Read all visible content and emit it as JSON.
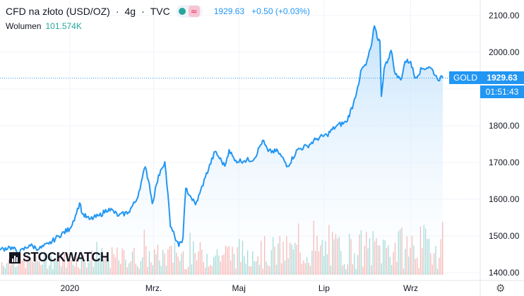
{
  "header": {
    "symbol": "CFD na złoto (USD/OZ)",
    "separator_1": "·",
    "interval": "4g",
    "separator_2": "·",
    "source": "TVC",
    "icon_1": "market-open-dot-icon",
    "icon_2": "wave-icon",
    "wave_glyph": "≈",
    "last_quote": "1929.63",
    "change": "+0.50 (+0.03%)"
  },
  "volume": {
    "label": "Wolumen",
    "value": "101.574K"
  },
  "logo_text": "STOCKWATCH",
  "badges": {
    "symbol": "GOLD",
    "price": "1929.63",
    "countdown": "01:51:43"
  },
  "colors": {
    "line": "#2196f3",
    "area_top": "#bbdefb",
    "vol_up": "#26a69a",
    "vol_down": "#ef5350",
    "axis_text": "#131722",
    "grid": "#f0f3fa"
  },
  "chart_data": {
    "type": "area",
    "y_axis_side": "right",
    "y_ticks": [
      1400,
      1500,
      1600,
      1700,
      1800,
      1900,
      2000,
      2100
    ],
    "y_tick_labels": [
      "1400.00",
      "1500.00",
      "1600.00",
      "1700.00",
      "1800.00",
      "1900.00",
      "2000.00",
      "2100.00"
    ],
    "ylim": [
      1385,
      2118
    ],
    "x_ticks": [
      {
        "label": "2020",
        "value": "2020-01-01"
      },
      {
        "label": "Mrz.",
        "value": "2020-03-01"
      },
      {
        "label": "Maj",
        "value": "2020-05-01"
      },
      {
        "label": "Lip",
        "value": "2020-07-01"
      },
      {
        "label": "Wrz",
        "value": "2020-09-01"
      }
    ],
    "xlim": [
      "2019-11-12",
      "2020-09-24"
    ],
    "last_price": 1929.63,
    "series": [
      {
        "values": [
          {
            "x": "2019-11-12",
            "y": 1462
          },
          {
            "x": "2019-11-19",
            "y": 1470
          },
          {
            "x": "2019-11-26",
            "y": 1455
          },
          {
            "x": "2019-12-03",
            "y": 1475
          },
          {
            "x": "2019-12-10",
            "y": 1465
          },
          {
            "x": "2019-12-17",
            "y": 1478
          },
          {
            "x": "2019-12-24",
            "y": 1500
          },
          {
            "x": "2020-01-01",
            "y": 1520
          },
          {
            "x": "2020-01-05",
            "y": 1555
          },
          {
            "x": "2020-01-08",
            "y": 1590
          },
          {
            "x": "2020-01-10",
            "y": 1560
          },
          {
            "x": "2020-01-15",
            "y": 1545
          },
          {
            "x": "2020-01-22",
            "y": 1555
          },
          {
            "x": "2020-01-29",
            "y": 1575
          },
          {
            "x": "2020-02-05",
            "y": 1555
          },
          {
            "x": "2020-02-12",
            "y": 1565
          },
          {
            "x": "2020-02-18",
            "y": 1600
          },
          {
            "x": "2020-02-21",
            "y": 1645
          },
          {
            "x": "2020-02-24",
            "y": 1688
          },
          {
            "x": "2020-02-27",
            "y": 1640
          },
          {
            "x": "2020-02-29",
            "y": 1588
          },
          {
            "x": "2020-03-03",
            "y": 1640
          },
          {
            "x": "2020-03-06",
            "y": 1680
          },
          {
            "x": "2020-03-09",
            "y": 1702
          },
          {
            "x": "2020-03-12",
            "y": 1580
          },
          {
            "x": "2020-03-13",
            "y": 1525
          },
          {
            "x": "2020-03-16",
            "y": 1500
          },
          {
            "x": "2020-03-19",
            "y": 1472
          },
          {
            "x": "2020-03-22",
            "y": 1495
          },
          {
            "x": "2020-03-24",
            "y": 1630
          },
          {
            "x": "2020-03-27",
            "y": 1610
          },
          {
            "x": "2020-03-31",
            "y": 1585
          },
          {
            "x": "2020-04-03",
            "y": 1615
          },
          {
            "x": "2020-04-07",
            "y": 1660
          },
          {
            "x": "2020-04-14",
            "y": 1730
          },
          {
            "x": "2020-04-21",
            "y": 1690
          },
          {
            "x": "2020-04-24",
            "y": 1735
          },
          {
            "x": "2020-04-28",
            "y": 1705
          },
          {
            "x": "2020-05-05",
            "y": 1705
          },
          {
            "x": "2020-05-12",
            "y": 1710
          },
          {
            "x": "2020-05-18",
            "y": 1760
          },
          {
            "x": "2020-05-22",
            "y": 1730
          },
          {
            "x": "2020-05-29",
            "y": 1730
          },
          {
            "x": "2020-06-05",
            "y": 1690
          },
          {
            "x": "2020-06-12",
            "y": 1735
          },
          {
            "x": "2020-06-19",
            "y": 1745
          },
          {
            "x": "2020-06-26",
            "y": 1765
          },
          {
            "x": "2020-07-03",
            "y": 1775
          },
          {
            "x": "2020-07-10",
            "y": 1800
          },
          {
            "x": "2020-07-17",
            "y": 1810
          },
          {
            "x": "2020-07-22",
            "y": 1860
          },
          {
            "x": "2020-07-25",
            "y": 1905
          },
          {
            "x": "2020-07-28",
            "y": 1955
          },
          {
            "x": "2020-07-31",
            "y": 1965
          },
          {
            "x": "2020-08-04",
            "y": 2020
          },
          {
            "x": "2020-08-06",
            "y": 2072
          },
          {
            "x": "2020-08-08",
            "y": 2040
          },
          {
            "x": "2020-08-10",
            "y": 2030
          },
          {
            "x": "2020-08-11",
            "y": 1880
          },
          {
            "x": "2020-08-13",
            "y": 1955
          },
          {
            "x": "2020-08-18",
            "y": 2005
          },
          {
            "x": "2020-08-21",
            "y": 1940
          },
          {
            "x": "2020-08-25",
            "y": 1925
          },
          {
            "x": "2020-08-28",
            "y": 1975
          },
          {
            "x": "2020-09-01",
            "y": 1975
          },
          {
            "x": "2020-09-04",
            "y": 1930
          },
          {
            "x": "2020-09-09",
            "y": 1955
          },
          {
            "x": "2020-09-14",
            "y": 1960
          },
          {
            "x": "2020-09-17",
            "y": 1950
          },
          {
            "x": "2020-09-20",
            "y": 1928
          },
          {
            "x": "2020-09-24",
            "y": 1929.63
          }
        ]
      }
    ],
    "volume_series": {
      "type": "bar",
      "colors": [
        "#26a69a",
        "#ef5350"
      ]
    }
  }
}
